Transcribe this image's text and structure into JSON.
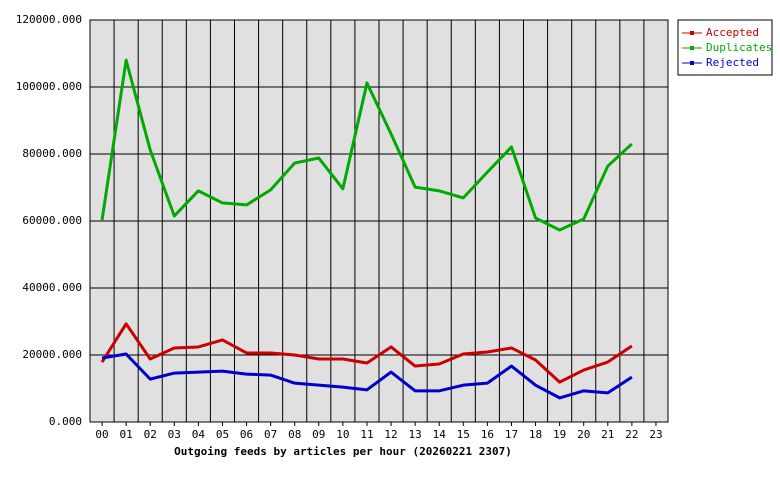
{
  "chart_data": {
    "type": "line",
    "xlabel": "Outgoing feeds by articles per hour (20260221 2307)",
    "categories": [
      "00",
      "01",
      "02",
      "03",
      "04",
      "05",
      "06",
      "07",
      "08",
      "09",
      "10",
      "11",
      "12",
      "13",
      "14",
      "15",
      "16",
      "17",
      "18",
      "19",
      "20",
      "21",
      "22",
      "23"
    ],
    "series": [
      {
        "name": "Accepted",
        "color": "#cc0000",
        "values": [
          17900,
          29300,
          18800,
          22100,
          22400,
          24500,
          20600,
          20600,
          20000,
          18800,
          18800,
          17600,
          22400,
          16700,
          17300,
          20300,
          20900,
          22100,
          18500,
          11900,
          15500,
          17900,
          22700,
          null
        ]
      },
      {
        "name": "Duplicates",
        "color": "#00aa00",
        "values": [
          60300,
          108000,
          81200,
          61500,
          69000,
          65400,
          64800,
          69300,
          77300,
          78800,
          69600,
          101200,
          86000,
          70100,
          69000,
          66900,
          74600,
          82100,
          60900,
          57300,
          60600,
          76400,
          83000,
          null
        ]
      },
      {
        "name": "Rejected",
        "color": "#0000cc",
        "values": [
          19100,
          20300,
          12800,
          14600,
          14900,
          15200,
          14300,
          14000,
          11600,
          11000,
          10400,
          9600,
          14900,
          9300,
          9300,
          11000,
          11600,
          16700,
          11000,
          7200,
          9300,
          8700,
          13400,
          null
        ]
      }
    ],
    "ylim": [
      0,
      120000
    ],
    "yticks": [
      {
        "value": 0,
        "label": "0.000"
      },
      {
        "value": 20000,
        "label": "20000.000"
      },
      {
        "value": 40000,
        "label": "40000.000"
      },
      {
        "value": 60000,
        "label": "60000.000"
      },
      {
        "value": 80000,
        "label": "80000.000"
      },
      {
        "value": 100000,
        "label": "100000.000"
      },
      {
        "value": 120000,
        "label": "120000.000"
      }
    ],
    "grid": true,
    "legend": "right"
  }
}
